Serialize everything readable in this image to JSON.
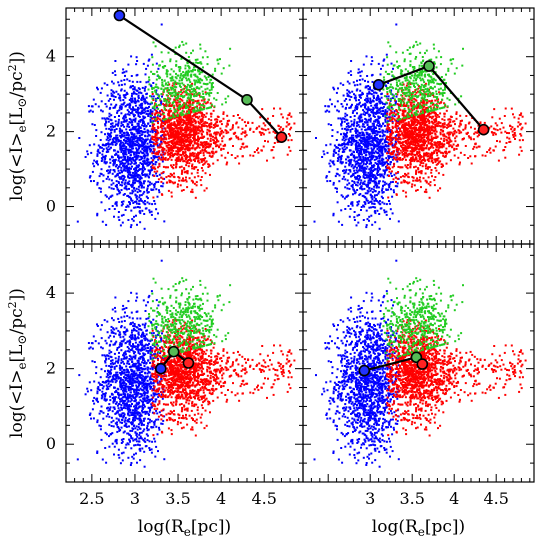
{
  "chart_data": {
    "type": "scatter",
    "layout": "2x2 panels sharing axes",
    "xlabel": "log(R_e[pc])",
    "ylabel": "log(<I>_e[L_⊙/pc²])",
    "xlim": [
      2.2,
      4.95
    ],
    "ylim": [
      -1.0,
      5.3
    ],
    "x_ticks_bottom_left": [
      "2.5",
      "3",
      "3.5",
      "4",
      "4.5"
    ],
    "x_ticks_bottom_right": [
      "3",
      "3.5",
      "4",
      "4.5"
    ],
    "y_ticks": [
      "0",
      "2",
      "4"
    ],
    "colors": {
      "blue": "#0000ff",
      "red": "#ff0000",
      "green": "#22cc22",
      "line": "#000000",
      "marker_green": "#55bb55",
      "marker_red": "#ff2222",
      "marker_blue": "#2233ff"
    },
    "clouds": [
      {
        "name": "blue",
        "color": "#0000ff",
        "x_range": [
          2.3,
          3.35
        ],
        "y_range": [
          -0.6,
          5.0
        ],
        "x_center": 2.98,
        "y_center": 1.6,
        "x_sd": 0.2,
        "y_sd": 0.95,
        "count": 1400
      },
      {
        "name": "red",
        "color": "#ff0000",
        "x_range": [
          3.2,
          4.9
        ],
        "y_range": [
          0.2,
          3.3
        ],
        "x_center": 3.55,
        "y_center": 1.9,
        "x_sd": 0.2,
        "y_sd": 0.6,
        "count": 1500
      },
      {
        "name": "green",
        "color": "#22cc22",
        "x_range": [
          3.15,
          4.3
        ],
        "y_range": [
          2.2,
          4.5
        ],
        "x_center": 3.55,
        "y_center": 3.2,
        "x_sd": 0.22,
        "y_sd": 0.45,
        "count": 450
      }
    ],
    "panels": [
      {
        "name": "top-left",
        "track": [
          {
            "x": 2.82,
            "y": 5.1,
            "color": "blue"
          },
          {
            "x": 4.3,
            "y": 2.85,
            "color": "green"
          },
          {
            "x": 4.7,
            "y": 1.85,
            "color": "red"
          }
        ]
      },
      {
        "name": "top-right",
        "track": [
          {
            "x": 3.1,
            "y": 3.25,
            "color": "blue"
          },
          {
            "x": 3.7,
            "y": 3.75,
            "color": "green"
          },
          {
            "x": 4.35,
            "y": 2.05,
            "color": "red"
          }
        ]
      },
      {
        "name": "bottom-left",
        "track": [
          {
            "x": 3.3,
            "y": 2.0,
            "color": "blue"
          },
          {
            "x": 3.45,
            "y": 2.45,
            "color": "green"
          },
          {
            "x": 3.62,
            "y": 2.15,
            "color": "red"
          }
        ]
      },
      {
        "name": "bottom-right",
        "track": [
          {
            "x": 2.93,
            "y": 1.95,
            "color": "blue"
          },
          {
            "x": 3.55,
            "y": 2.3,
            "color": "green"
          },
          {
            "x": 3.62,
            "y": 2.12,
            "color": "red"
          }
        ]
      }
    ]
  }
}
